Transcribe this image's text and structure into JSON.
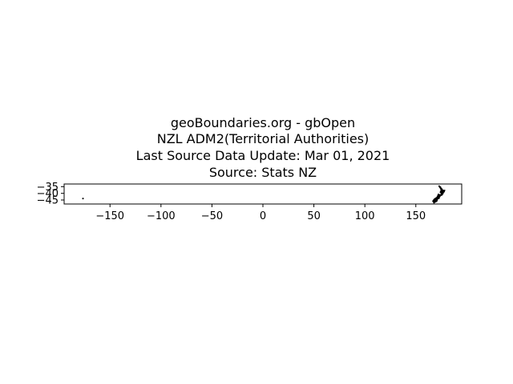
{
  "title_lines": [
    "geoBoundaries.org - gbOpen",
    "NZL ADM2(Territorial Authorities)",
    "Last Source Data Update: Mar 01, 2021",
    "Source: Stats NZ"
  ],
  "chart_data": {
    "type": "map",
    "title": "geoBoundaries.org - gbOpen NZL ADM2(Territorial Authorities) Last Source Data Update: Mar 01, 2021 Source: Stats NZ",
    "xlim": [
      -195,
      195
    ],
    "ylim": [
      -48,
      -33
    ],
    "x_ticks": [
      -150,
      -100,
      -50,
      0,
      50,
      100,
      150
    ],
    "x_tick_labels": [
      "−150",
      "−100",
      "−50",
      "0",
      "50",
      "100",
      "150"
    ],
    "y_ticks": [
      -35,
      -40,
      -45
    ],
    "y_tick_labels": [
      "−35",
      "−40",
      "−45"
    ],
    "grid": false,
    "fill_color": "#000000",
    "features": [
      {
        "name": "",
        "kind": "main-islands",
        "outline": [
          [
            173.0,
            -34.4
          ],
          [
            174.4,
            -35.2
          ],
          [
            175.0,
            -36.6
          ],
          [
            175.8,
            -36.6
          ],
          [
            176.2,
            -37.6
          ],
          [
            178.5,
            -37.7
          ],
          [
            177.8,
            -39.0
          ],
          [
            177.0,
            -39.4
          ],
          [
            176.8,
            -40.2
          ],
          [
            175.3,
            -41.6
          ],
          [
            174.6,
            -41.3
          ],
          [
            174.2,
            -41.6
          ],
          [
            173.8,
            -42.4
          ],
          [
            172.8,
            -43.3
          ],
          [
            173.1,
            -43.8
          ],
          [
            172.0,
            -44.0
          ],
          [
            171.2,
            -44.5
          ],
          [
            170.8,
            -45.8
          ],
          [
            169.3,
            -46.6
          ],
          [
            168.0,
            -46.7
          ],
          [
            166.5,
            -46.0
          ],
          [
            167.0,
            -45.3
          ],
          [
            168.3,
            -44.1
          ],
          [
            170.6,
            -43.0
          ],
          [
            171.3,
            -42.0
          ],
          [
            172.1,
            -40.5
          ],
          [
            173.0,
            -40.9
          ],
          [
            174.0,
            -41.1
          ],
          [
            174.8,
            -41.0
          ],
          [
            174.8,
            -39.8
          ],
          [
            173.8,
            -39.2
          ],
          [
            174.6,
            -38.1
          ],
          [
            174.6,
            -37.1
          ],
          [
            174.2,
            -36.4
          ],
          [
            173.0,
            -35.2
          ],
          [
            172.6,
            -34.4
          ]
        ]
      },
      {
        "name": "",
        "kind": "stewart-island",
        "outline": [
          [
            167.6,
            -46.7
          ],
          [
            168.2,
            -46.8
          ],
          [
            168.1,
            -47.3
          ],
          [
            167.5,
            -47.2
          ]
        ]
      },
      {
        "name": "",
        "kind": "chatham-islands",
        "outline": [
          [
            -176.8,
            -43.7
          ],
          [
            -176.2,
            -43.7
          ],
          [
            -176.2,
            -44.1
          ],
          [
            -176.8,
            -44.1
          ]
        ]
      }
    ]
  }
}
